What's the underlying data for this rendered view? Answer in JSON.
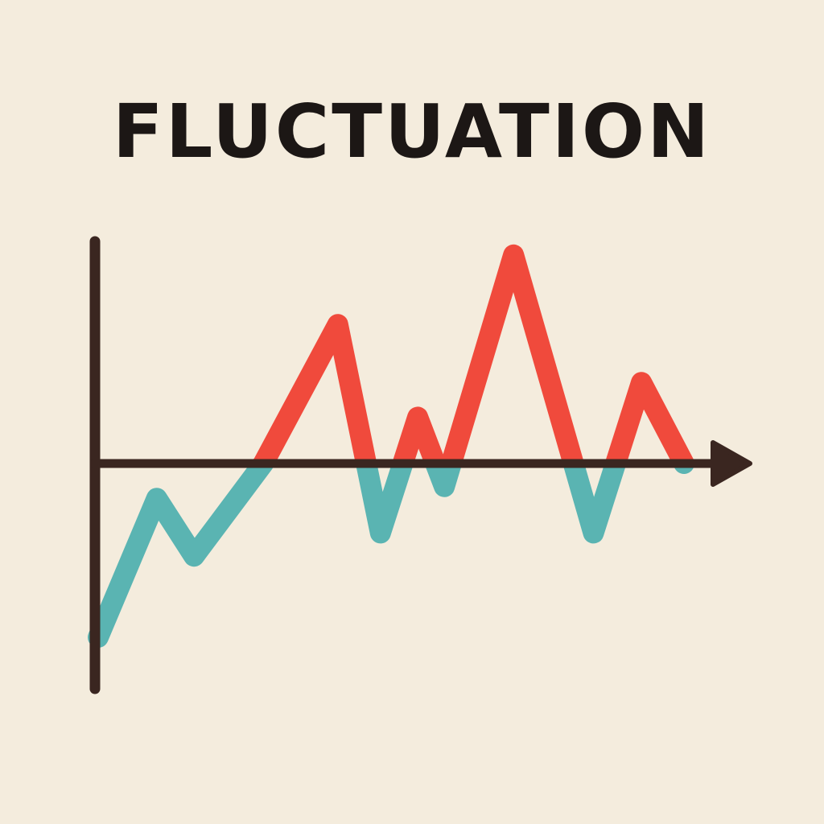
{
  "chart_data": {
    "type": "line",
    "title": "FLUCTUATION",
    "xlabel": "",
    "ylabel": "",
    "grid": false,
    "ylim": [
      -1,
      1
    ],
    "xlim": [
      0,
      11
    ],
    "x": [
      0,
      1.1,
      1.8,
      3.1,
      4.5,
      5.3,
      6.0,
      6.5,
      7.8,
      9.3,
      10.2,
      11.0
    ],
    "y": [
      -0.75,
      -0.15,
      -0.4,
      0.0,
      0.6,
      -0.3,
      0.2,
      -0.1,
      0.9,
      -0.3,
      0.35,
      0.0
    ],
    "positive_color": "#f04a3c",
    "negative_color": "#5ab4b2",
    "axis_color": "#3a2620"
  }
}
